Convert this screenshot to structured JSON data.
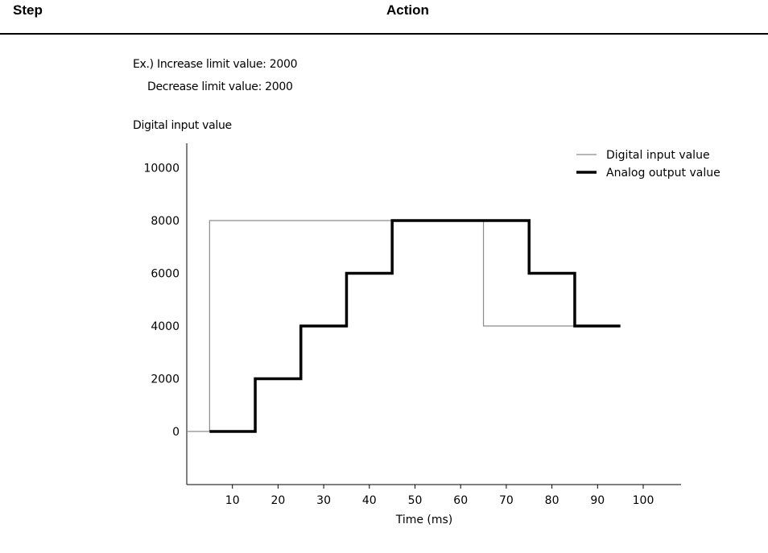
{
  "table_header": {
    "step": "Step",
    "action": "Action"
  },
  "notes": {
    "line1": "Ex.) Increase limit value: 2000",
    "line2": "Decrease limit value: 2000"
  },
  "chart_data": {
    "type": "line",
    "title": "",
    "ylabel": "Digital input value",
    "xlabel": "Time (ms)",
    "x_ticks": [
      10,
      20,
      30,
      40,
      50,
      60,
      70,
      80,
      90,
      100
    ],
    "y_ticks": [
      0,
      2000,
      4000,
      6000,
      8000,
      10000
    ],
    "xlim": [
      0,
      110
    ],
    "ylim": [
      -2000,
      11000
    ],
    "grid": false,
    "legend_position": "top-right",
    "series": [
      {
        "name": "Digital input value",
        "style": "thin",
        "color": "#8c8c8c",
        "points": [
          [
            0,
            0
          ],
          [
            5,
            0
          ],
          [
            5,
            8000
          ],
          [
            65,
            8000
          ],
          [
            65,
            4000
          ],
          [
            85,
            4000
          ]
        ]
      },
      {
        "name": "Analog output value",
        "style": "thick",
        "color": "#000000",
        "points": [
          [
            5,
            0
          ],
          [
            15,
            0
          ],
          [
            15,
            2000
          ],
          [
            25,
            2000
          ],
          [
            25,
            4000
          ],
          [
            35,
            4000
          ],
          [
            35,
            6000
          ],
          [
            45,
            6000
          ],
          [
            45,
            8000
          ],
          [
            75,
            8000
          ],
          [
            75,
            6000
          ],
          [
            85,
            6000
          ],
          [
            85,
            4000
          ],
          [
            95,
            4000
          ]
        ]
      }
    ]
  }
}
